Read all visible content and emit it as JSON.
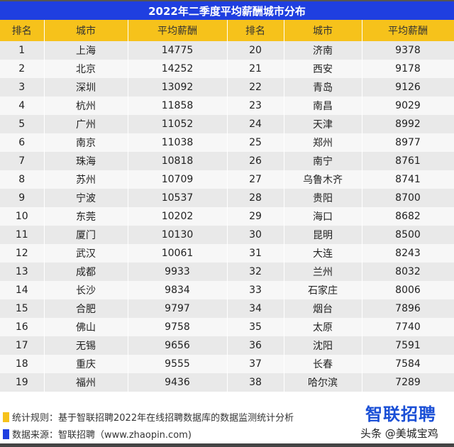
{
  "title": "2022年二季度平均薪酬城市分布",
  "headers": [
    "排名",
    "城市",
    "平均薪酬",
    "排名",
    "城市",
    "平均薪酬"
  ],
  "rows": [
    [
      "1",
      "上海",
      "14775",
      "20",
      "济南",
      "9378"
    ],
    [
      "2",
      "北京",
      "14252",
      "21",
      "西安",
      "9178"
    ],
    [
      "3",
      "深圳",
      "13092",
      "22",
      "青岛",
      "9126"
    ],
    [
      "4",
      "杭州",
      "11858",
      "23",
      "南昌",
      "9029"
    ],
    [
      "5",
      "广州",
      "11052",
      "24",
      "天津",
      "8992"
    ],
    [
      "6",
      "南京",
      "11038",
      "25",
      "郑州",
      "8977"
    ],
    [
      "7",
      "珠海",
      "10818",
      "26",
      "南宁",
      "8761"
    ],
    [
      "8",
      "苏州",
      "10709",
      "27",
      "乌鲁木齐",
      "8741"
    ],
    [
      "9",
      "宁波",
      "10537",
      "28",
      "贵阳",
      "8700"
    ],
    [
      "10",
      "东莞",
      "10202",
      "29",
      "海口",
      "8682"
    ],
    [
      "11",
      "厦门",
      "10130",
      "30",
      "昆明",
      "8500"
    ],
    [
      "12",
      "武汉",
      "10061",
      "31",
      "大连",
      "8243"
    ],
    [
      "13",
      "成都",
      "9933",
      "32",
      "兰州",
      "8032"
    ],
    [
      "14",
      "长沙",
      "9834",
      "33",
      "石家庄",
      "8006"
    ],
    [
      "15",
      "合肥",
      "9797",
      "34",
      "烟台",
      "7896"
    ],
    [
      "16",
      "佛山",
      "9758",
      "35",
      "太原",
      "7740"
    ],
    [
      "17",
      "无锡",
      "9656",
      "36",
      "沈阳",
      "7591"
    ],
    [
      "18",
      "重庆",
      "9555",
      "37",
      "长春",
      "7584"
    ],
    [
      "19",
      "福州",
      "9436",
      "38",
      "哈尔滨",
      "7289"
    ]
  ],
  "footer": {
    "rule": "统计规则：基于智联招聘2022年在线招聘数据库的数据监测统计分析",
    "source": "数据来源：智联招聘（www.zhaopin.com)"
  },
  "logo": "智联招聘",
  "watermark": "头条 @美城宝鸡",
  "colors": {
    "title_bg": "#1f3fe0",
    "header_bg": "#f6c21b"
  }
}
